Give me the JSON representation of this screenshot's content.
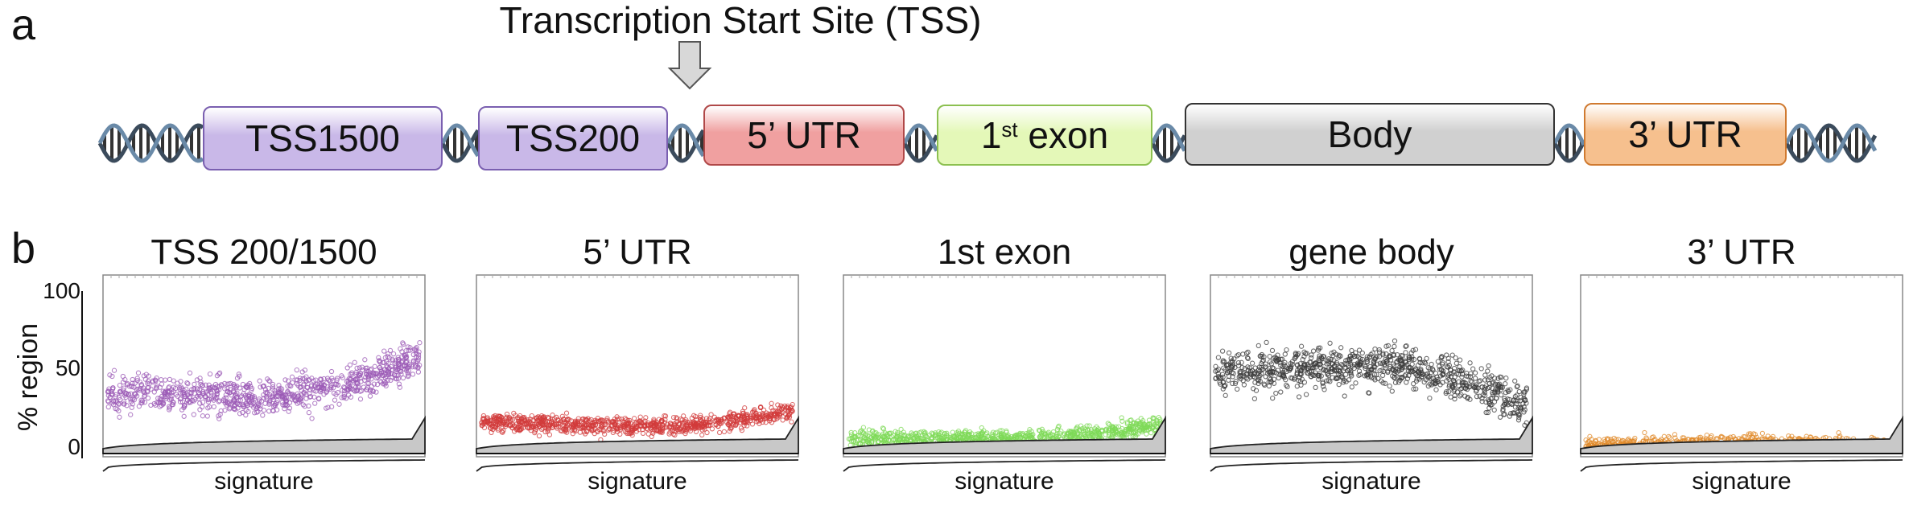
{
  "panel_a": {
    "letter": "a",
    "tss_label": "Transcription Start Site (TSS)",
    "regions": [
      {
        "id": "tss1500",
        "label": "TSS1500",
        "sup": "",
        "suffix": "",
        "fill": "#c9b8e8",
        "border": "#7a5fb0"
      },
      {
        "id": "tss200",
        "label": "TSS200",
        "sup": "",
        "suffix": "",
        "fill": "#c9b8e8",
        "border": "#7a5fb0"
      },
      {
        "id": "utr5",
        "label": "5’ UTR",
        "sup": "",
        "suffix": "",
        "fill": "#f0a0a0",
        "border": "#b04848"
      },
      {
        "id": "exon1",
        "label": "1",
        "sup": "st",
        "suffix": " exon",
        "fill": "#e4f8b8",
        "border": "#8cc050"
      },
      {
        "id": "body",
        "label": "Body",
        "sup": "",
        "suffix": "",
        "fill": "#d0d0d0",
        "border": "#333333"
      },
      {
        "id": "utr3",
        "label": "3’ UTR",
        "sup": "",
        "suffix": "",
        "fill": "#f6c08e",
        "border": "#d07a30"
      }
    ]
  },
  "panel_b": {
    "letter": "b",
    "ylabel": "% region",
    "yticks": [
      "100",
      "50",
      "0"
    ],
    "xlabel": "signature"
  },
  "chart_data": [
    {
      "type": "scatter",
      "title": "TSS 200/1500",
      "xlabel": "signature",
      "ylabel": "% region",
      "ylim": [
        0,
        100
      ],
      "color": "#9b59b6",
      "trend": {
        "y_start": 35,
        "y_mid": 32,
        "y_end": 58
      }
    },
    {
      "type": "scatter",
      "title": "5’ UTR",
      "xlabel": "signature",
      "ylim": [
        0,
        100
      ],
      "color": "#d13b3b",
      "trend": {
        "y_start": 16,
        "y_mid": 13,
        "y_end": 24
      }
    },
    {
      "type": "scatter",
      "title": "1st  exon",
      "xlabel": "signature",
      "ylim": [
        0,
        100
      ],
      "color": "#7ed957",
      "trend": {
        "y_start": 5,
        "y_mid": 5,
        "y_end": 15
      }
    },
    {
      "type": "scatter",
      "title": "gene body",
      "xlabel": "signature",
      "ylim": [
        0,
        100
      ],
      "color": "#3a3a3a",
      "trend": {
        "y_start": 47,
        "y_mid": 52,
        "y_end": 25
      }
    },
    {
      "type": "scatter",
      "title": "3’ UTR",
      "xlabel": "signature",
      "ylim": [
        0,
        100
      ],
      "color": "#e08a2a",
      "trend": {
        "y_start": 0,
        "y_mid": 2,
        "y_end": 0
      }
    }
  ]
}
